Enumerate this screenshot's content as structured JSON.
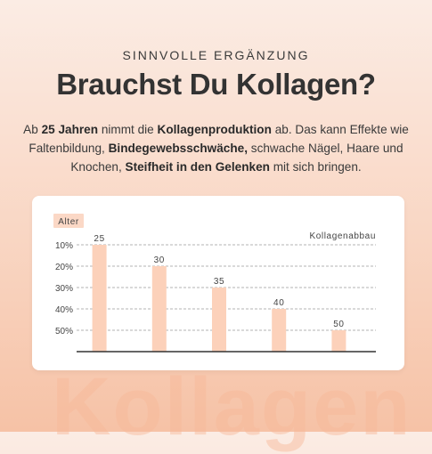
{
  "header": {
    "eyebrow": "SINNVOLLE ERGÄNZUNG",
    "title": "Brauchst Du Kollagen?"
  },
  "intro": {
    "p1": "Ab ",
    "b1": "25 Jahren",
    "p2": " nimmt die ",
    "b2": "Kollagenproduktion",
    "p3": " ab. Das kann Effekte wie Faltenbildung, ",
    "b3": "Bindegewebsschwäche,",
    "p4": " schwache Nägel, Haare und Knochen, ",
    "b4": "Steifheit in den Gelenken",
    "p5": " mit sich bringen."
  },
  "watermark": "Kollagen",
  "colors": {
    "bar": "#fcd1ba",
    "badge": "#fbd8c6",
    "grid": "#9a9a9a",
    "axis": "#333333"
  },
  "chart_data": {
    "type": "bar",
    "xlabel": "Alter",
    "ylabel": "Kollagenabbau",
    "categories": [
      "25",
      "30",
      "35",
      "40",
      "50"
    ],
    "values": [
      50,
      40,
      30,
      20,
      10
    ],
    "y_ticks": [
      "10%",
      "20%",
      "30%",
      "40%",
      "50%"
    ],
    "ylim": [
      0,
      50
    ],
    "y_axis_inverted": true,
    "grid": true
  }
}
